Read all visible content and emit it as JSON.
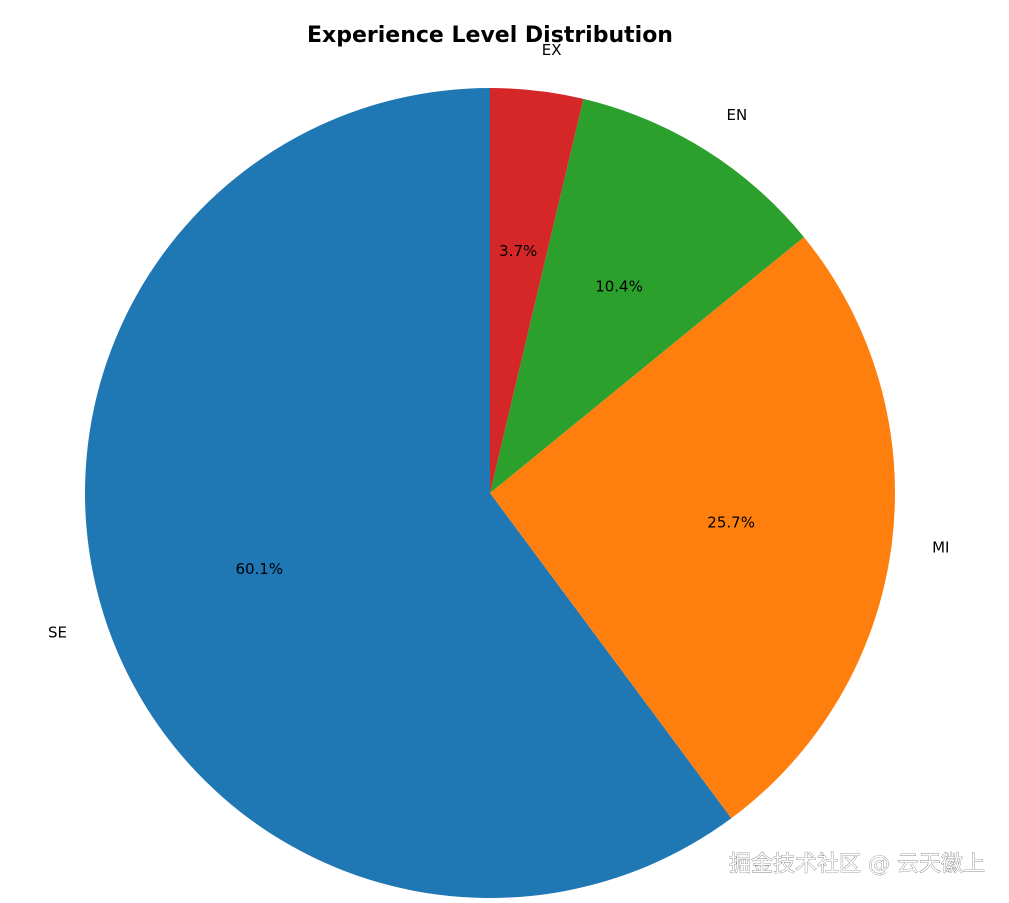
{
  "chart_data": {
    "type": "pie",
    "title": "Experience Level Distribution",
    "categories": [
      "SE",
      "MI",
      "EN",
      "EX"
    ],
    "values": [
      60.1,
      25.7,
      10.4,
      3.7
    ],
    "value_labels": [
      "60.1%",
      "25.7%",
      "10.4%",
      "3.7%"
    ],
    "colors": [
      "#1f77b4",
      "#ff7f0e",
      "#2ca02c",
      "#d62728"
    ],
    "start_angle": 90,
    "counterclock": true
  },
  "watermark": "掘金技术社区 @ 云天徽上"
}
